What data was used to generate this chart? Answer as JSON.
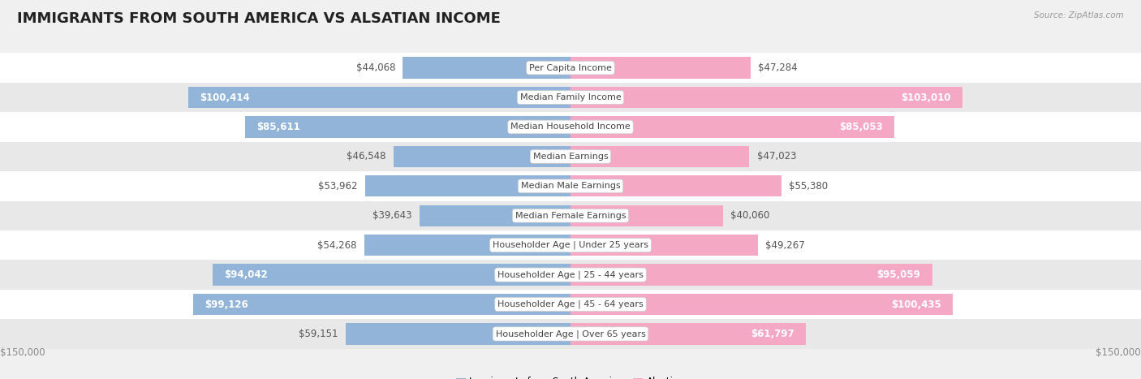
{
  "title": "IMMIGRANTS FROM SOUTH AMERICA VS ALSATIAN INCOME",
  "source": "Source: ZipAtlas.com",
  "categories": [
    "Per Capita Income",
    "Median Family Income",
    "Median Household Income",
    "Median Earnings",
    "Median Male Earnings",
    "Median Female Earnings",
    "Householder Age | Under 25 years",
    "Householder Age | 25 - 44 years",
    "Householder Age | 45 - 64 years",
    "Householder Age | Over 65 years"
  ],
  "left_values": [
    44068,
    100414,
    85611,
    46548,
    53962,
    39643,
    54268,
    94042,
    99126,
    59151
  ],
  "right_values": [
    47284,
    103010,
    85053,
    47023,
    55380,
    40060,
    49267,
    95059,
    100435,
    61797
  ],
  "left_labels": [
    "$44,068",
    "$100,414",
    "$85,611",
    "$46,548",
    "$53,962",
    "$39,643",
    "$54,268",
    "$94,042",
    "$99,126",
    "$59,151"
  ],
  "right_labels": [
    "$47,284",
    "$103,010",
    "$85,053",
    "$47,023",
    "$55,380",
    "$40,060",
    "$49,267",
    "$95,059",
    "$100,435",
    "$61,797"
  ],
  "left_color": "#92b4d9",
  "right_color": "#f4a8c4",
  "max_val": 150000,
  "legend_left": "Immigrants from South America",
  "legend_right": "Alsatian",
  "bg_color": "#f0f0f0",
  "title_fontsize": 13,
  "label_fontsize": 8.5,
  "category_fontsize": 8.0,
  "large_threshold": 60000
}
